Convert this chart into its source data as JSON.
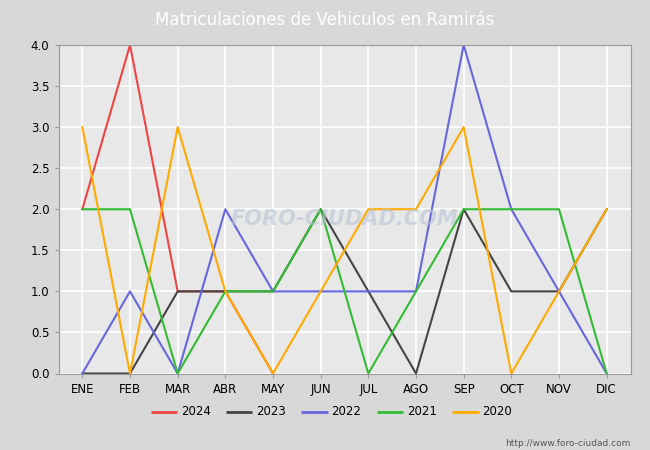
{
  "title": "Matriculaciones de Vehiculos en Ramirás",
  "title_color": "white",
  "title_bg_color": "#4a7fc1",
  "months": [
    "ENE",
    "FEB",
    "MAR",
    "ABR",
    "MAY",
    "JUN",
    "JUL",
    "AGO",
    "SEP",
    "OCT",
    "NOV",
    "DIC"
  ],
  "series": {
    "2024": {
      "color": "#ee4444",
      "values": [
        2,
        4,
        1,
        1,
        0,
        null,
        null,
        null,
        null,
        null,
        null,
        null
      ]
    },
    "2023": {
      "color": "#444444",
      "values": [
        0,
        0,
        1,
        1,
        1,
        2,
        1,
        0,
        2,
        1,
        1,
        2
      ]
    },
    "2022": {
      "color": "#6666dd",
      "values": [
        0,
        1,
        0,
        2,
        1,
        1,
        1,
        1,
        4,
        2,
        1,
        0
      ]
    },
    "2021": {
      "color": "#33bb33",
      "values": [
        2,
        2,
        0,
        1,
        1,
        2,
        0,
        1,
        2,
        2,
        2,
        0
      ]
    },
    "2020": {
      "color": "#ffaa00",
      "values": [
        3,
        0,
        3,
        1,
        0,
        1,
        2,
        2,
        3,
        0,
        1,
        2
      ]
    }
  },
  "ylim": [
    0,
    4.0
  ],
  "yticks": [
    0.0,
    0.5,
    1.0,
    1.5,
    2.0,
    2.5,
    3.0,
    3.5,
    4.0
  ],
  "outer_bg_color": "#d8d8d8",
  "plot_bg_color": "#e8e8e8",
  "grid_color": "white",
  "watermark_text": "FORO-CIUDAD.COM",
  "watermark_color": "#b8c4d4",
  "url_text": "http://www.foro-ciudad.com",
  "legend_order": [
    "2024",
    "2023",
    "2022",
    "2021",
    "2020"
  ]
}
